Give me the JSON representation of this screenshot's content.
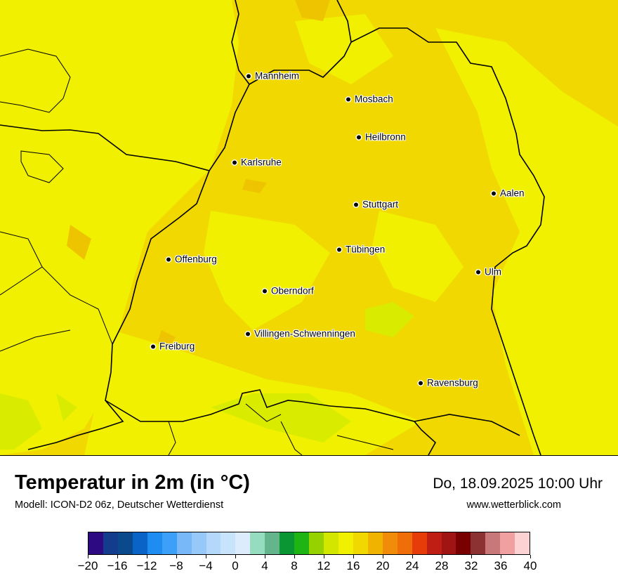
{
  "map": {
    "cities": [
      {
        "name": "Mannheim"
      },
      {
        "name": "Mosbach"
      },
      {
        "name": "Heilbronn"
      },
      {
        "name": "Karlsruhe"
      },
      {
        "name": "Aalen"
      },
      {
        "name": "Stuttgart"
      },
      {
        "name": "Tübingen"
      },
      {
        "name": "Offenburg"
      },
      {
        "name": "Ulm"
      },
      {
        "name": "Oberndorf"
      },
      {
        "name": "Villingen-Schwenningen"
      },
      {
        "name": "Freiburg"
      },
      {
        "name": "Ravensburg"
      }
    ],
    "colors": {
      "temp_16_18": "#f0f000",
      "temp_18_20": "#f0d800",
      "temp_14_16": "#d9ec00",
      "temp_20_22": "#eec400",
      "border": "#000000"
    }
  },
  "footer": {
    "title": "Temperatur in 2m (in °C)",
    "subtitle": "Modell: ICON-D2 06z, Deutscher Wetterdienst",
    "datetime": "Do, 18.09.2025 10:00 Uhr",
    "website": "www.wetterblick.com"
  },
  "legend": {
    "swatches": [
      "#2d0a82",
      "#143c8c",
      "#0a4a8c",
      "#0a64c8",
      "#1e8cf0",
      "#3ca0f8",
      "#78b8f8",
      "#96c8fa",
      "#b4d8fc",
      "#c8e4fc",
      "#dcecfc",
      "#96dcbe",
      "#64b48c",
      "#0a9632",
      "#1eb414",
      "#96d200",
      "#d2e600",
      "#f0f000",
      "#f0d800",
      "#f0b400",
      "#f08c0a",
      "#f06e0a",
      "#e63c0a",
      "#be1e14",
      "#a01414",
      "#780000",
      "#8c3232",
      "#c87878",
      "#f0a0a0",
      "#fcd2d2"
    ],
    "tick_labels": [
      "−20",
      "−16",
      "−12",
      "−8",
      "−4",
      "0",
      "4",
      "8",
      "12",
      "16",
      "20",
      "24",
      "28",
      "32",
      "36",
      "40"
    ]
  }
}
